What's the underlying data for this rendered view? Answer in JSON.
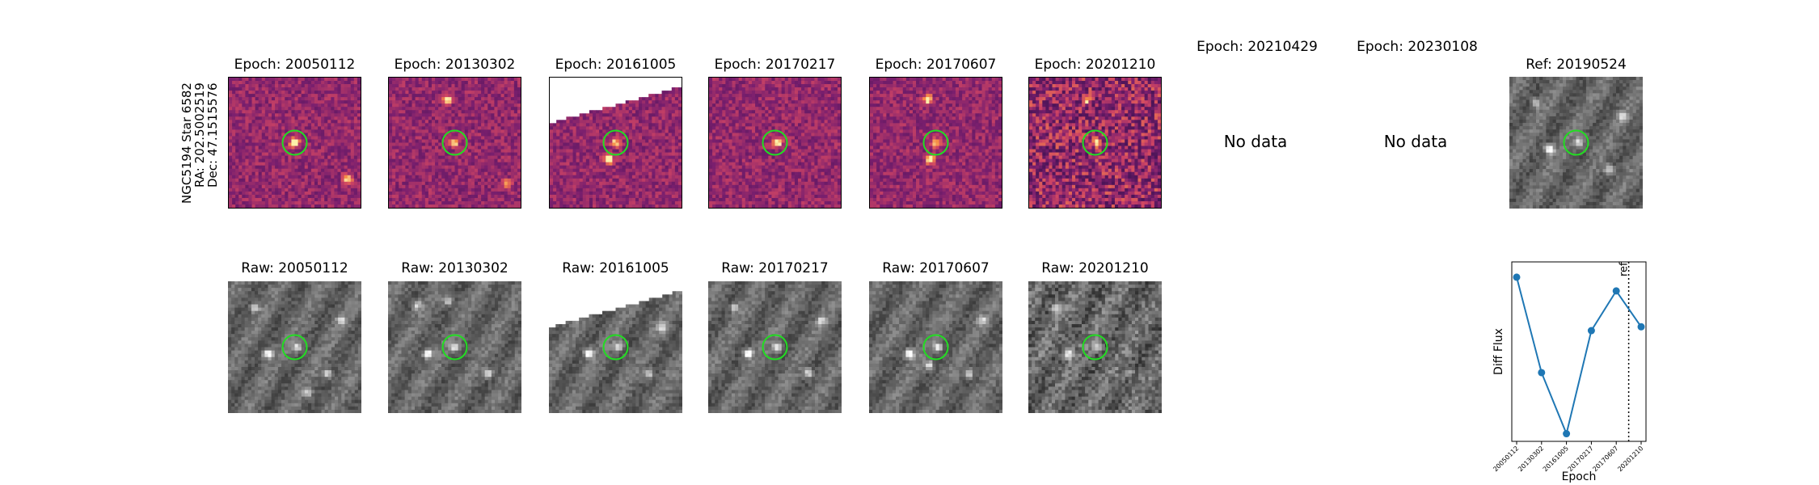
{
  "star": {
    "name": "NGC5194 Star 6582",
    "ra": "RA: 202.5002519",
    "dec": "Dec: 47.1515576"
  },
  "epoch_titles": [
    "Epoch: 20050112",
    "Epoch: 20130302",
    "Epoch: 20161005",
    "Epoch: 20170217",
    "Epoch: 20170607",
    "Epoch: 20201210",
    "Epoch: 20210429",
    "Epoch: 20230108"
  ],
  "ref_title": "Ref: 20190524",
  "no_data": "No data",
  "raw_titles": [
    "Raw: 20050112",
    "Raw: 20130302",
    "Raw: 20161005",
    "Raw: 20170217",
    "Raw: 20170607",
    "Raw: 20201210"
  ],
  "colors": {
    "circle": "#22dd22",
    "line": "#1f77b4",
    "diff_cmap_dark": "#7a1f6e",
    "diff_cmap_light": "#f2c25a"
  },
  "chart_data": {
    "type": "line",
    "xlabel": "Epoch",
    "ylabel": "Diff Flux",
    "x": [
      "20050112",
      "20130302",
      "20161005",
      "20170217",
      "20170607",
      "20201210"
    ],
    "values": [
      0.9,
      -0.35,
      -1.15,
      0.2,
      0.72,
      0.25
    ],
    "ylim": [
      -1.25,
      1.1
    ],
    "ref_label": "ref",
    "ref_position_between": [
      "20170607",
      "20201210"
    ],
    "y_ticks_shown": false
  }
}
